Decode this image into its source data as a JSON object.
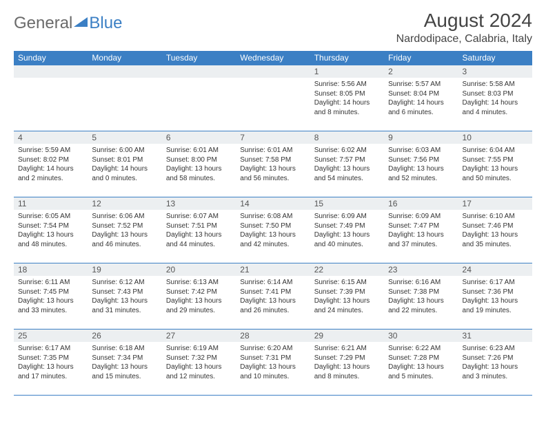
{
  "logo": {
    "text1": "General",
    "text2": "Blue"
  },
  "title": "August 2024",
  "location": "Nardodipace, Calabria, Italy",
  "colors": {
    "header_bg": "#3b7fc4",
    "header_text": "#ffffff",
    "daynum_bg": "#eceff1",
    "border": "#3b7fc4",
    "text": "#333333",
    "logo_gray": "#6a6a6a",
    "logo_blue": "#3b7fc4"
  },
  "day_headers": [
    "Sunday",
    "Monday",
    "Tuesday",
    "Wednesday",
    "Thursday",
    "Friday",
    "Saturday"
  ],
  "weeks": [
    [
      null,
      null,
      null,
      null,
      {
        "n": "1",
        "sr": "5:56 AM",
        "ss": "8:05 PM",
        "d1": "14 hours",
        "d2": "and 8 minutes."
      },
      {
        "n": "2",
        "sr": "5:57 AM",
        "ss": "8:04 PM",
        "d1": "14 hours",
        "d2": "and 6 minutes."
      },
      {
        "n": "3",
        "sr": "5:58 AM",
        "ss": "8:03 PM",
        "d1": "14 hours",
        "d2": "and 4 minutes."
      }
    ],
    [
      {
        "n": "4",
        "sr": "5:59 AM",
        "ss": "8:02 PM",
        "d1": "14 hours",
        "d2": "and 2 minutes."
      },
      {
        "n": "5",
        "sr": "6:00 AM",
        "ss": "8:01 PM",
        "d1": "14 hours",
        "d2": "and 0 minutes."
      },
      {
        "n": "6",
        "sr": "6:01 AM",
        "ss": "8:00 PM",
        "d1": "13 hours",
        "d2": "and 58 minutes."
      },
      {
        "n": "7",
        "sr": "6:01 AM",
        "ss": "7:58 PM",
        "d1": "13 hours",
        "d2": "and 56 minutes."
      },
      {
        "n": "8",
        "sr": "6:02 AM",
        "ss": "7:57 PM",
        "d1": "13 hours",
        "d2": "and 54 minutes."
      },
      {
        "n": "9",
        "sr": "6:03 AM",
        "ss": "7:56 PM",
        "d1": "13 hours",
        "d2": "and 52 minutes."
      },
      {
        "n": "10",
        "sr": "6:04 AM",
        "ss": "7:55 PM",
        "d1": "13 hours",
        "d2": "and 50 minutes."
      }
    ],
    [
      {
        "n": "11",
        "sr": "6:05 AM",
        "ss": "7:54 PM",
        "d1": "13 hours",
        "d2": "and 48 minutes."
      },
      {
        "n": "12",
        "sr": "6:06 AM",
        "ss": "7:52 PM",
        "d1": "13 hours",
        "d2": "and 46 minutes."
      },
      {
        "n": "13",
        "sr": "6:07 AM",
        "ss": "7:51 PM",
        "d1": "13 hours",
        "d2": "and 44 minutes."
      },
      {
        "n": "14",
        "sr": "6:08 AM",
        "ss": "7:50 PM",
        "d1": "13 hours",
        "d2": "and 42 minutes."
      },
      {
        "n": "15",
        "sr": "6:09 AM",
        "ss": "7:49 PM",
        "d1": "13 hours",
        "d2": "and 40 minutes."
      },
      {
        "n": "16",
        "sr": "6:09 AM",
        "ss": "7:47 PM",
        "d1": "13 hours",
        "d2": "and 37 minutes."
      },
      {
        "n": "17",
        "sr": "6:10 AM",
        "ss": "7:46 PM",
        "d1": "13 hours",
        "d2": "and 35 minutes."
      }
    ],
    [
      {
        "n": "18",
        "sr": "6:11 AM",
        "ss": "7:45 PM",
        "d1": "13 hours",
        "d2": "and 33 minutes."
      },
      {
        "n": "19",
        "sr": "6:12 AM",
        "ss": "7:43 PM",
        "d1": "13 hours",
        "d2": "and 31 minutes."
      },
      {
        "n": "20",
        "sr": "6:13 AM",
        "ss": "7:42 PM",
        "d1": "13 hours",
        "d2": "and 29 minutes."
      },
      {
        "n": "21",
        "sr": "6:14 AM",
        "ss": "7:41 PM",
        "d1": "13 hours",
        "d2": "and 26 minutes."
      },
      {
        "n": "22",
        "sr": "6:15 AM",
        "ss": "7:39 PM",
        "d1": "13 hours",
        "d2": "and 24 minutes."
      },
      {
        "n": "23",
        "sr": "6:16 AM",
        "ss": "7:38 PM",
        "d1": "13 hours",
        "d2": "and 22 minutes."
      },
      {
        "n": "24",
        "sr": "6:17 AM",
        "ss": "7:36 PM",
        "d1": "13 hours",
        "d2": "and 19 minutes."
      }
    ],
    [
      {
        "n": "25",
        "sr": "6:17 AM",
        "ss": "7:35 PM",
        "d1": "13 hours",
        "d2": "and 17 minutes."
      },
      {
        "n": "26",
        "sr": "6:18 AM",
        "ss": "7:34 PM",
        "d1": "13 hours",
        "d2": "and 15 minutes."
      },
      {
        "n": "27",
        "sr": "6:19 AM",
        "ss": "7:32 PM",
        "d1": "13 hours",
        "d2": "and 12 minutes."
      },
      {
        "n": "28",
        "sr": "6:20 AM",
        "ss": "7:31 PM",
        "d1": "13 hours",
        "d2": "and 10 minutes."
      },
      {
        "n": "29",
        "sr": "6:21 AM",
        "ss": "7:29 PM",
        "d1": "13 hours",
        "d2": "and 8 minutes."
      },
      {
        "n": "30",
        "sr": "6:22 AM",
        "ss": "7:28 PM",
        "d1": "13 hours",
        "d2": "and 5 minutes."
      },
      {
        "n": "31",
        "sr": "6:23 AM",
        "ss": "7:26 PM",
        "d1": "13 hours",
        "d2": "and 3 minutes."
      }
    ]
  ],
  "labels": {
    "sunrise": "Sunrise:",
    "sunset": "Sunset:",
    "daylight": "Daylight:"
  }
}
